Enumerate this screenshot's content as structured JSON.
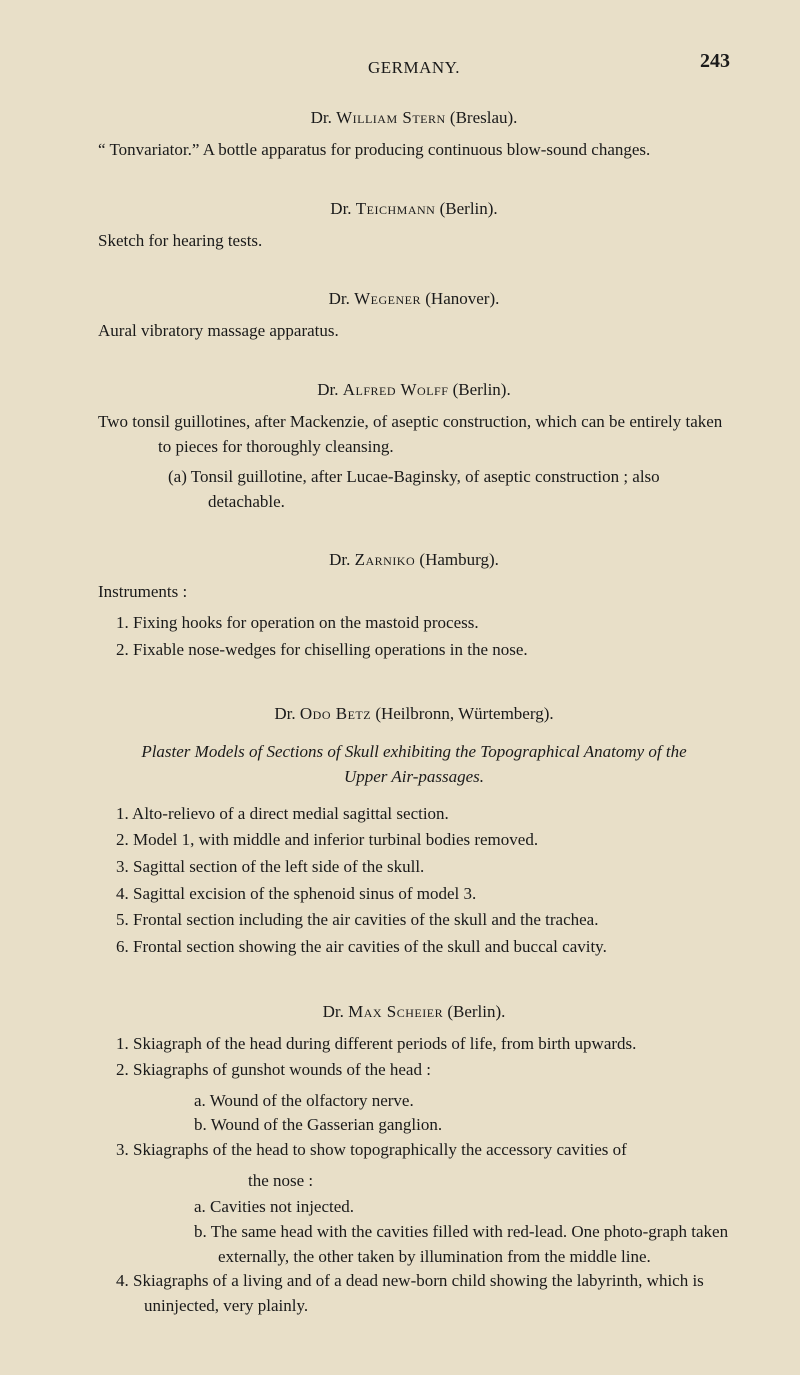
{
  "colors": {
    "background": "#e8dfc8",
    "text": "#1a1a1a"
  },
  "typography": {
    "body_fontsize_pt": 13,
    "heading_fontsize_pt": 13,
    "pagenum_fontsize_pt": 15,
    "font_family": "Times New Roman"
  },
  "header": {
    "running_title": "GERMANY.",
    "page_number": "243"
  },
  "entries": [
    {
      "author_prefix": "Dr. ",
      "author_name": "William Stern",
      "author_suffix": " (Breslau).",
      "body": "“ Tonvariator.”   A bottle apparatus for producing continuous blow-sound changes."
    },
    {
      "author_prefix": "Dr. ",
      "author_name": "Teichmann",
      "author_suffix": " (Berlin).",
      "body": "Sketch for hearing tests."
    },
    {
      "author_prefix": "Dr. ",
      "author_name": "Wegener",
      "author_suffix": " (Hanover).",
      "body": "Aural vibratory massage apparatus."
    },
    {
      "author_prefix": "Dr. ",
      "author_name": "Alfred Wolff",
      "author_suffix": " (Berlin).",
      "body_line1": "Two tonsil guillotines, after Mackenzie, of aseptic construction, which can be entirely taken to pieces for thoroughly cleansing.",
      "body_line2": "(a) Tonsil guillotine, after Lucae-Baginsky, of aseptic construction ; also detachable."
    },
    {
      "author_prefix": "Dr. ",
      "author_name": "Zarniko",
      "author_suffix": " (Hamburg).",
      "lead": "Instruments :",
      "items": [
        "1.  Fixing hooks for operation on the mastoid process.",
        "2.  Fixable nose-wedges for chiselling operations in the nose."
      ]
    },
    {
      "author_prefix": "Dr. ",
      "author_name": "Odo Betz",
      "author_suffix": " (Heilbronn, Würtemberg).",
      "section_title_line1": "Plaster Models of Sections of Skull exhibiting the Topographical Anatomy of the",
      "section_title_line2": "Upper Air-passages.",
      "items": [
        "1.   Alto-relievo of a direct medial sagittal section.",
        "2.   Model 1, with middle and inferior turbinal bodies removed.",
        "3.   Sagittal section of the left side of the skull.",
        "4.   Sagittal excision of the sphenoid sinus of model 3.",
        "5.   Frontal section including the air cavities of the skull and the trachea.",
        "6.   Frontal section showing the air cavities of the skull and buccal cavity."
      ]
    },
    {
      "author_prefix": "Dr. ",
      "author_name": "Max Scheier",
      "author_suffix": " (Berlin).",
      "items": [
        {
          "text": "1.   Skiagraph of the head during different periods of life, from birth upwards."
        },
        {
          "text": "2.   Skiagraphs of gunshot wounds of the head :",
          "sub": [
            "a. Wound of the olfactory nerve.",
            "b. Wound of the Gasserian ganglion."
          ]
        },
        {
          "text": "3.   Skiagraphs of the head to show topographically the accessory cavities of",
          "cont": "the nose :",
          "sub": [
            "a. Cavities not injected.",
            "b. The same head with the cavities filled with red-lead.  One photo-graph taken externally, the other taken by illumination from the middle line."
          ]
        },
        {
          "text": "4.   Skiagraphs of a living and of a dead new-born child showing the labyrinth, which is uninjected, very plainly."
        }
      ]
    }
  ]
}
